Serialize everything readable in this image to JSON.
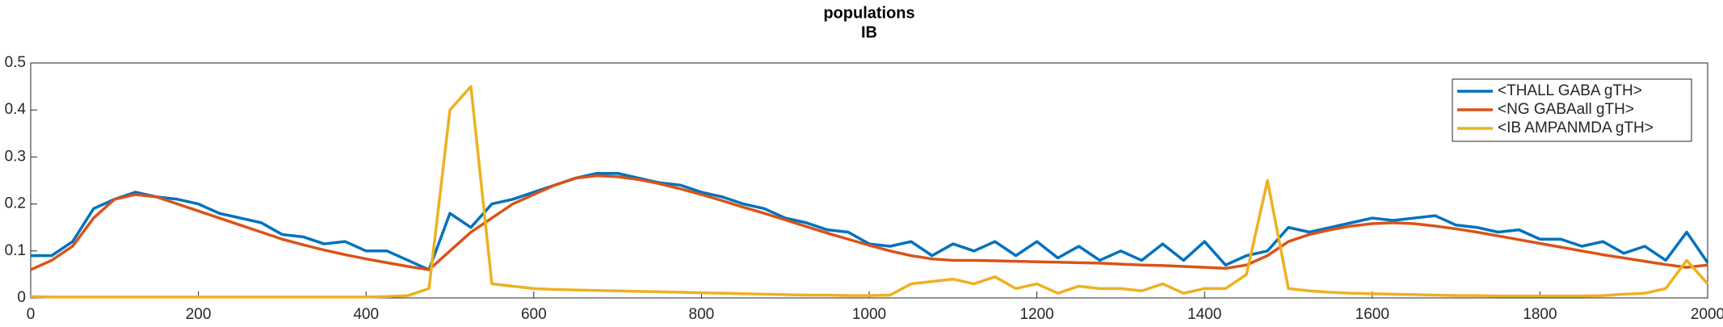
{
  "chart_data": {
    "type": "line",
    "title": "populations",
    "subtitle": "IB",
    "x": [
      0,
      25,
      50,
      75,
      100,
      125,
      150,
      175,
      200,
      225,
      250,
      275,
      300,
      325,
      350,
      375,
      400,
      425,
      450,
      475,
      500,
      525,
      550,
      575,
      600,
      625,
      650,
      675,
      700,
      725,
      750,
      775,
      800,
      825,
      850,
      875,
      900,
      925,
      950,
      975,
      1000,
      1025,
      1050,
      1075,
      1100,
      1125,
      1150,
      1175,
      1200,
      1225,
      1250,
      1275,
      1300,
      1325,
      1350,
      1375,
      1400,
      1425,
      1450,
      1475,
      1500,
      1525,
      1550,
      1575,
      1600,
      1625,
      1650,
      1675,
      1700,
      1725,
      1750,
      1775,
      1800,
      1825,
      1850,
      1875,
      1900,
      1925,
      1950,
      1975,
      2000
    ],
    "series": [
      {
        "name": "<THALL GABA gTH>",
        "color": "#0072bd",
        "values": [
          0.09,
          0.09,
          0.12,
          0.19,
          0.21,
          0.225,
          0.215,
          0.21,
          0.2,
          0.18,
          0.17,
          0.16,
          0.135,
          0.13,
          0.115,
          0.12,
          0.1,
          0.1,
          0.08,
          0.06,
          0.18,
          0.15,
          0.2,
          0.21,
          0.225,
          0.24,
          0.255,
          0.265,
          0.265,
          0.255,
          0.245,
          0.24,
          0.225,
          0.215,
          0.2,
          0.19,
          0.17,
          0.16,
          0.145,
          0.14,
          0.115,
          0.11,
          0.12,
          0.09,
          0.115,
          0.1,
          0.12,
          0.09,
          0.12,
          0.085,
          0.11,
          0.08,
          0.1,
          0.08,
          0.115,
          0.08,
          0.12,
          0.07,
          0.09,
          0.1,
          0.15,
          0.14,
          0.15,
          0.16,
          0.17,
          0.165,
          0.17,
          0.175,
          0.155,
          0.15,
          0.14,
          0.145,
          0.125,
          0.125,
          0.11,
          0.12,
          0.095,
          0.11,
          0.08,
          0.14,
          0.075
        ]
      },
      {
        "name": "<NG GABAall gTH>",
        "color": "#d95319",
        "values": [
          0.06,
          0.08,
          0.11,
          0.17,
          0.21,
          0.22,
          0.215,
          0.2,
          0.185,
          0.17,
          0.155,
          0.14,
          0.125,
          0.113,
          0.102,
          0.092,
          0.083,
          0.075,
          0.067,
          0.06,
          0.1,
          0.14,
          0.17,
          0.2,
          0.22,
          0.24,
          0.255,
          0.26,
          0.258,
          0.252,
          0.243,
          0.232,
          0.22,
          0.207,
          0.193,
          0.18,
          0.166,
          0.152,
          0.138,
          0.125,
          0.112,
          0.1,
          0.09,
          0.083,
          0.08,
          0.08,
          0.079,
          0.078,
          0.077,
          0.076,
          0.075,
          0.074,
          0.072,
          0.07,
          0.069,
          0.067,
          0.065,
          0.063,
          0.07,
          0.09,
          0.12,
          0.135,
          0.145,
          0.153,
          0.158,
          0.16,
          0.158,
          0.153,
          0.147,
          0.14,
          0.132,
          0.124,
          0.116,
          0.108,
          0.1,
          0.092,
          0.085,
          0.078,
          0.071,
          0.065,
          0.07
        ]
      },
      {
        "name": "<IB AMPANMDA gTH>",
        "color": "#edb120",
        "values": [
          0.003,
          0.002,
          0.002,
          0.002,
          0.002,
          0.002,
          0.002,
          0.002,
          0.002,
          0.002,
          0.002,
          0.002,
          0.002,
          0.002,
          0.002,
          0.002,
          0.002,
          0.003,
          0.005,
          0.02,
          0.4,
          0.45,
          0.03,
          0.025,
          0.02,
          0.018,
          0.017,
          0.016,
          0.015,
          0.014,
          0.013,
          0.012,
          0.011,
          0.01,
          0.009,
          0.008,
          0.007,
          0.006,
          0.006,
          0.005,
          0.005,
          0.006,
          0.03,
          0.035,
          0.04,
          0.03,
          0.045,
          0.02,
          0.03,
          0.01,
          0.025,
          0.02,
          0.02,
          0.015,
          0.03,
          0.01,
          0.02,
          0.02,
          0.05,
          0.25,
          0.02,
          0.015,
          0.012,
          0.01,
          0.009,
          0.008,
          0.007,
          0.006,
          0.005,
          0.005,
          0.004,
          0.004,
          0.004,
          0.004,
          0.004,
          0.005,
          0.008,
          0.01,
          0.02,
          0.08,
          0.03
        ]
      }
    ],
    "xlim": [
      0,
      2000
    ],
    "xticks": [
      0,
      200,
      400,
      600,
      800,
      1000,
      1200,
      1400,
      1600,
      1800,
      2000
    ],
    "ylim": [
      0,
      0.5
    ],
    "yticks": [
      0,
      0.1,
      0.2,
      0.3,
      0.4,
      0.5
    ],
    "legend": "upper right"
  }
}
